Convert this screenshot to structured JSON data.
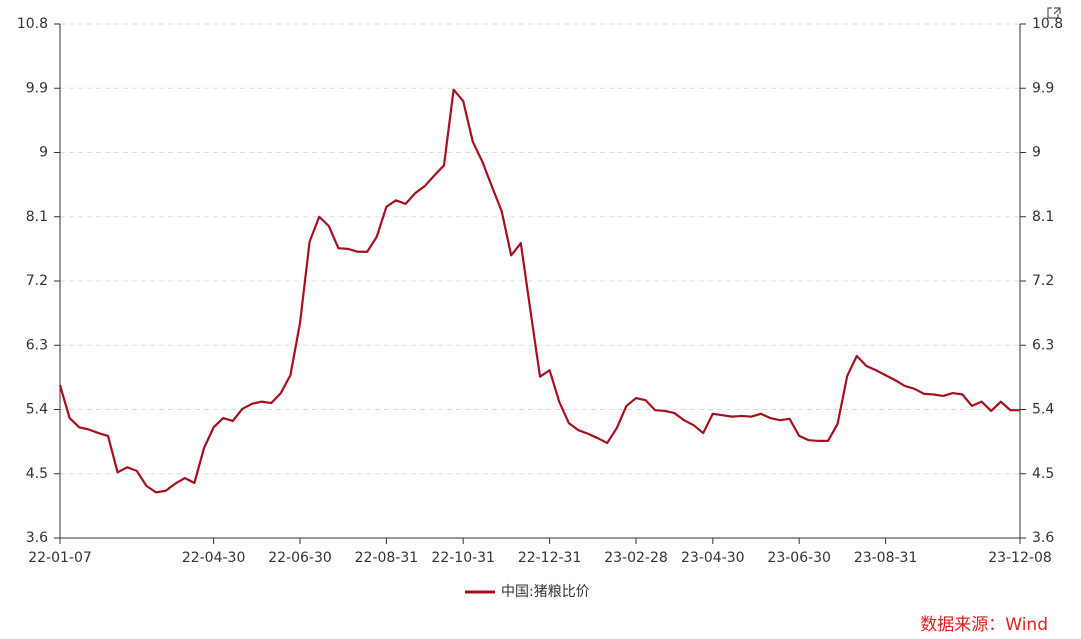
{
  "chart_data": {
    "type": "line",
    "categories": [
      "22-01-07",
      null,
      null,
      null,
      null,
      null,
      null,
      null,
      null,
      null,
      null,
      null,
      null,
      null,
      null,
      null,
      "22-04-30",
      null,
      null,
      null,
      null,
      null,
      null,
      null,
      null,
      "22-06-30",
      null,
      null,
      null,
      null,
      null,
      null,
      null,
      null,
      "22-08-31",
      null,
      null,
      null,
      null,
      null,
      null,
      null,
      "22-10-31",
      null,
      null,
      null,
      null,
      null,
      null,
      null,
      null,
      "22-12-31",
      null,
      null,
      null,
      null,
      null,
      null,
      null,
      null,
      "23-02-28",
      null,
      null,
      null,
      null,
      null,
      null,
      null,
      "23-04-30",
      null,
      null,
      null,
      null,
      null,
      null,
      null,
      null,
      "23-06-30",
      null,
      null,
      null,
      null,
      null,
      null,
      null,
      null,
      "23-08-31",
      null,
      null,
      null,
      null,
      null,
      null,
      null,
      null,
      null,
      null,
      null,
      null,
      null,
      "23-12-08"
    ],
    "series": [
      {
        "name": "中国:猪粮比价",
        "color": "#a50f1e",
        "values": [
          5.74,
          5.28,
          5.15,
          5.12,
          5.07,
          5.03,
          4.52,
          4.59,
          4.54,
          4.33,
          4.24,
          4.26,
          4.36,
          4.44,
          4.37,
          4.86,
          5.15,
          5.28,
          5.24,
          5.41,
          5.48,
          5.51,
          5.49,
          5.63,
          5.88,
          6.61,
          7.75,
          8.1,
          7.97,
          7.66,
          7.65,
          7.61,
          7.61,
          7.82,
          8.24,
          8.33,
          8.28,
          8.43,
          8.53,
          8.68,
          8.82,
          9.88,
          9.72,
          9.15,
          8.87,
          8.52,
          8.18,
          7.56,
          7.73,
          6.79,
          5.86,
          5.95,
          5.51,
          5.21,
          5.11,
          5.06,
          5.0,
          4.93,
          5.14,
          5.45,
          5.56,
          5.53,
          5.39,
          5.38,
          5.35,
          5.25,
          5.18,
          5.07,
          5.34,
          5.32,
          5.3,
          5.31,
          5.3,
          5.34,
          5.28,
          5.25,
          5.27,
          5.03,
          4.97,
          4.96,
          4.96,
          5.2,
          5.87,
          6.15,
          6.01,
          5.95,
          5.88,
          5.81,
          5.73,
          5.69,
          5.62,
          5.61,
          5.59,
          5.63,
          5.61,
          5.45,
          5.51,
          5.38,
          5.51,
          5.39,
          5.39
        ]
      }
    ],
    "ylim": [
      3.6,
      10.8
    ],
    "yticks": [
      3.6,
      4.5,
      5.4,
      6.3,
      7.2,
      8.1,
      9,
      9.9,
      10.8
    ],
    "y2lim": [
      3.6,
      10.8
    ],
    "y2ticks": [
      3.6,
      4.5,
      5.4,
      6.3,
      7.2,
      8.1,
      9,
      9.9,
      10.8
    ],
    "grid": true,
    "legend": "bottom",
    "source": "数据来源：Wind"
  }
}
